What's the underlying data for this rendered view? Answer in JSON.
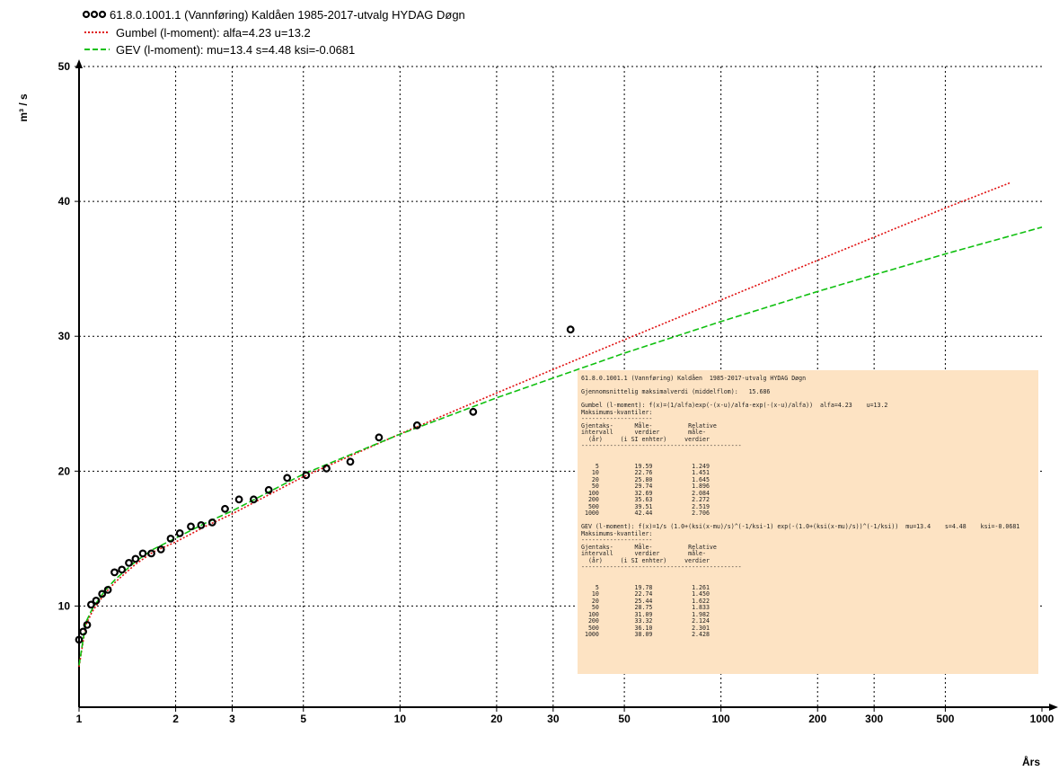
{
  "chart_data": {
    "type": "scatter",
    "title": "",
    "xlabel": "Års",
    "ylabel": "m³ / s",
    "x_scale": "log",
    "xlim": [
      1,
      1000
    ],
    "ylim": [
      2.5,
      50
    ],
    "x_ticks": [
      1,
      2,
      3,
      5,
      10,
      20,
      30,
      50,
      100,
      200,
      300,
      500,
      1000
    ],
    "y_ticks": [
      10,
      20,
      30,
      40,
      50
    ],
    "grid": true,
    "legend_position": "top-left",
    "series": [
      {
        "name": "61.8.0.1001.1 (Vannføring) Kaldåen  1985-2017-utvalg HYDAG Døgn",
        "kind": "points",
        "color": "#000000",
        "points": [
          {
            "x": 1.0,
            "y": 7.5
          },
          {
            "x": 1.03,
            "y": 8.1
          },
          {
            "x": 1.06,
            "y": 8.6
          },
          {
            "x": 1.09,
            "y": 10.1
          },
          {
            "x": 1.13,
            "y": 10.4
          },
          {
            "x": 1.18,
            "y": 10.9
          },
          {
            "x": 1.23,
            "y": 11.2
          },
          {
            "x": 1.29,
            "y": 12.5
          },
          {
            "x": 1.36,
            "y": 12.7
          },
          {
            "x": 1.43,
            "y": 13.2
          },
          {
            "x": 1.5,
            "y": 13.5
          },
          {
            "x": 1.58,
            "y": 13.9
          },
          {
            "x": 1.68,
            "y": 13.9
          },
          {
            "x": 1.8,
            "y": 14.2
          },
          {
            "x": 1.93,
            "y": 15.0
          },
          {
            "x": 2.06,
            "y": 15.4
          },
          {
            "x": 2.23,
            "y": 15.9
          },
          {
            "x": 2.4,
            "y": 16.0
          },
          {
            "x": 2.6,
            "y": 16.2
          },
          {
            "x": 2.85,
            "y": 17.2
          },
          {
            "x": 3.15,
            "y": 17.9
          },
          {
            "x": 3.5,
            "y": 17.9
          },
          {
            "x": 3.9,
            "y": 18.6
          },
          {
            "x": 4.45,
            "y": 19.5
          },
          {
            "x": 5.1,
            "y": 19.7
          },
          {
            "x": 5.9,
            "y": 20.2
          },
          {
            "x": 7.0,
            "y": 20.7
          },
          {
            "x": 8.6,
            "y": 22.5
          },
          {
            "x": 11.3,
            "y": 23.4
          },
          {
            "x": 16.9,
            "y": 24.4
          },
          {
            "x": 34.0,
            "y": 30.5
          }
        ]
      },
      {
        "name": "Gumbel (l-moment): alfa=4.23    u=13.2",
        "kind": "line",
        "style": "dotted",
        "color": "#e01010",
        "points": [
          {
            "x": 1.0,
            "y": 5.5
          },
          {
            "x": 1.05,
            "y": 8.6
          },
          {
            "x": 1.1,
            "y": 9.6
          },
          {
            "x": 1.2,
            "y": 10.9
          },
          {
            "x": 1.3,
            "y": 11.8
          },
          {
            "x": 1.5,
            "y": 13.1
          },
          {
            "x": 1.7,
            "y": 14.0
          },
          {
            "x": 2.0,
            "y": 14.75
          },
          {
            "x": 2.5,
            "y": 15.96
          },
          {
            "x": 3.0,
            "y": 16.83
          },
          {
            "x": 5.0,
            "y": 19.59
          },
          {
            "x": 10.0,
            "y": 22.76
          },
          {
            "x": 20.0,
            "y": 25.8
          },
          {
            "x": 50.0,
            "y": 29.74
          },
          {
            "x": 100.0,
            "y": 32.69
          },
          {
            "x": 200.0,
            "y": 35.63
          },
          {
            "x": 500.0,
            "y": 39.51
          },
          {
            "x": 800.0,
            "y": 41.4
          }
        ]
      },
      {
        "name": "GEV (l-moment): mu=13.4    s=4.48    ksi=-0.0681",
        "kind": "line",
        "style": "dashed",
        "color": "#10c010",
        "points": [
          {
            "x": 1.0,
            "y": 5.6
          },
          {
            "x": 1.05,
            "y": 8.8
          },
          {
            "x": 1.1,
            "y": 9.8
          },
          {
            "x": 1.2,
            "y": 11.1
          },
          {
            "x": 1.3,
            "y": 12.0
          },
          {
            "x": 1.5,
            "y": 13.3
          },
          {
            "x": 1.7,
            "y": 14.2
          },
          {
            "x": 2.0,
            "y": 15.04
          },
          {
            "x": 2.5,
            "y": 16.2
          },
          {
            "x": 3.0,
            "y": 17.05
          },
          {
            "x": 5.0,
            "y": 19.78
          },
          {
            "x": 10.0,
            "y": 22.74
          },
          {
            "x": 20.0,
            "y": 25.44
          },
          {
            "x": 50.0,
            "y": 28.75
          },
          {
            "x": 100.0,
            "y": 31.09
          },
          {
            "x": 200.0,
            "y": 33.32
          },
          {
            "x": 500.0,
            "y": 36.1
          },
          {
            "x": 1000.0,
            "y": 38.09
          }
        ]
      }
    ]
  },
  "info_box": {
    "lines": [
      "61.8.0.1001.1 (Vannføring) Kaldåen  1985-2017-utvalg HYDAG Døgn",
      "",
      "Gjennomsnittelig maksimalverdi (middelflom):   15.686",
      "",
      "Gumbel (l-moment): f(x)=(1/alfa)exp(-(x-u)/alfa-exp(-(x-u)/alfa))  alfa=4.23    u=13.2",
      "Maksimums-kvantiler:",
      "--------------------",
      "Gjentaks-      Måle-          Relative",
      "intervall      verdier        måle-",
      "  (år)     (i SI enhter)     verdier",
      "---------------------------------------------",
      "",
      "",
      "    5          19.59           1.249",
      "   10          22.76           1.451",
      "   20          25.80           1.645",
      "   50          29.74           1.896",
      "  100          32.69           2.084",
      "  200          35.63           2.272",
      "  500          39.51           2.519",
      " 1000          42.44           2.706",
      "",
      "GEV (l-moment): f(x)=1/s (1.0+(ksi(x-mu)/s)^(-1/ksi-1) exp(-(1.0+(ksi(x-mu)/s))^(-1/ksi))  mu=13.4    s=4.48    ksi=-0.0681",
      "Maksimums-kvantiler:",
      "--------------------",
      "Gjentaks-      Måle-          Relative",
      "intervall      verdier        måle-",
      "  (år)     (i SI enhter)     verdier",
      "---------------------------------------------",
      "",
      "",
      "    5          19.78           1.261",
      "   10          22.74           1.450",
      "   20          25.44           1.622",
      "   50          28.75           1.833",
      "  100          31.09           1.982",
      "  200          33.32           2.124",
      "  500          36.10           2.301",
      " 1000          38.09           2.428"
    ]
  }
}
